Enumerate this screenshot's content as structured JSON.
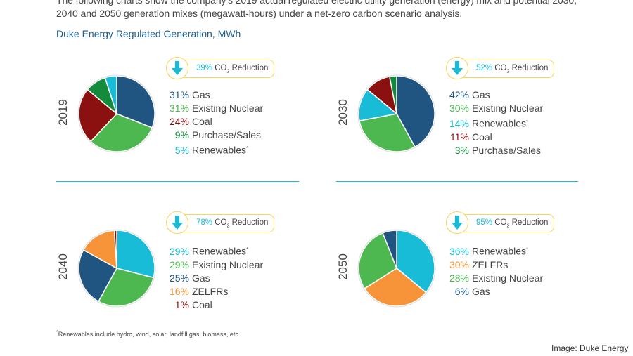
{
  "intro_text": "The following charts show the company's 2019 actual regulated electric utility generation (energy) mix and potential 2030, 2040 and 2050 generation mixes (megawatt-hours) under a net-zero carbon scenario analysis.",
  "subtitle": "Duke Energy Regulated Generation, MWh",
  "badge_suffix_co": "CO",
  "badge_sub": "2",
  "badge_suffix": "Reduction",
  "badge_icon": "down-arrow-icon",
  "colors": {
    "Gas": "#1f5580",
    "Existing Nuclear": "#4cb84f",
    "Coal": "#8b1010",
    "Purchase/Sales": "#138a3c",
    "Renewables": "#19bcd6",
    "ZELFRs": "#f7943a",
    "accent": "#f6d660"
  },
  "chart_data": [
    {
      "type": "pie",
      "year": "2019",
      "co2_reduction": "39%",
      "slices": [
        {
          "label": "Gas",
          "value": 31
        },
        {
          "label": "Existing Nuclear",
          "value": 31
        },
        {
          "label": "Coal",
          "value": 24
        },
        {
          "label": "Purchase/Sales",
          "value": 9
        },
        {
          "label": "Renewables",
          "value": 5,
          "note": "*"
        }
      ]
    },
    {
      "type": "pie",
      "year": "2030",
      "co2_reduction": "52%",
      "slices": [
        {
          "label": "Gas",
          "value": 42
        },
        {
          "label": "Existing Nuclear",
          "value": 30
        },
        {
          "label": "Renewables",
          "value": 14,
          "note": "*"
        },
        {
          "label": "Coal",
          "value": 11
        },
        {
          "label": "Purchase/Sales",
          "value": 3
        }
      ]
    },
    {
      "type": "pie",
      "year": "2040",
      "co2_reduction": "78%",
      "slices": [
        {
          "label": "Renewables",
          "value": 29,
          "note": "*"
        },
        {
          "label": "Existing Nuclear",
          "value": 29
        },
        {
          "label": "Gas",
          "value": 25
        },
        {
          "label": "ZELFRs",
          "value": 16
        },
        {
          "label": "Coal",
          "value": 1
        }
      ]
    },
    {
      "type": "pie",
      "year": "2050",
      "co2_reduction": "95%",
      "slices": [
        {
          "label": "Renewables",
          "value": 36,
          "note": "*"
        },
        {
          "label": "ZELFRs",
          "value": 30
        },
        {
          "label": "Existing Nuclear",
          "value": 28
        },
        {
          "label": "Gas",
          "value": 6
        }
      ]
    }
  ],
  "footnote_mark": "*",
  "footnote": "Renewables include hydro, wind, solar, landfill gas, biomass, etc.",
  "credit": "Image: Duke Energy"
}
